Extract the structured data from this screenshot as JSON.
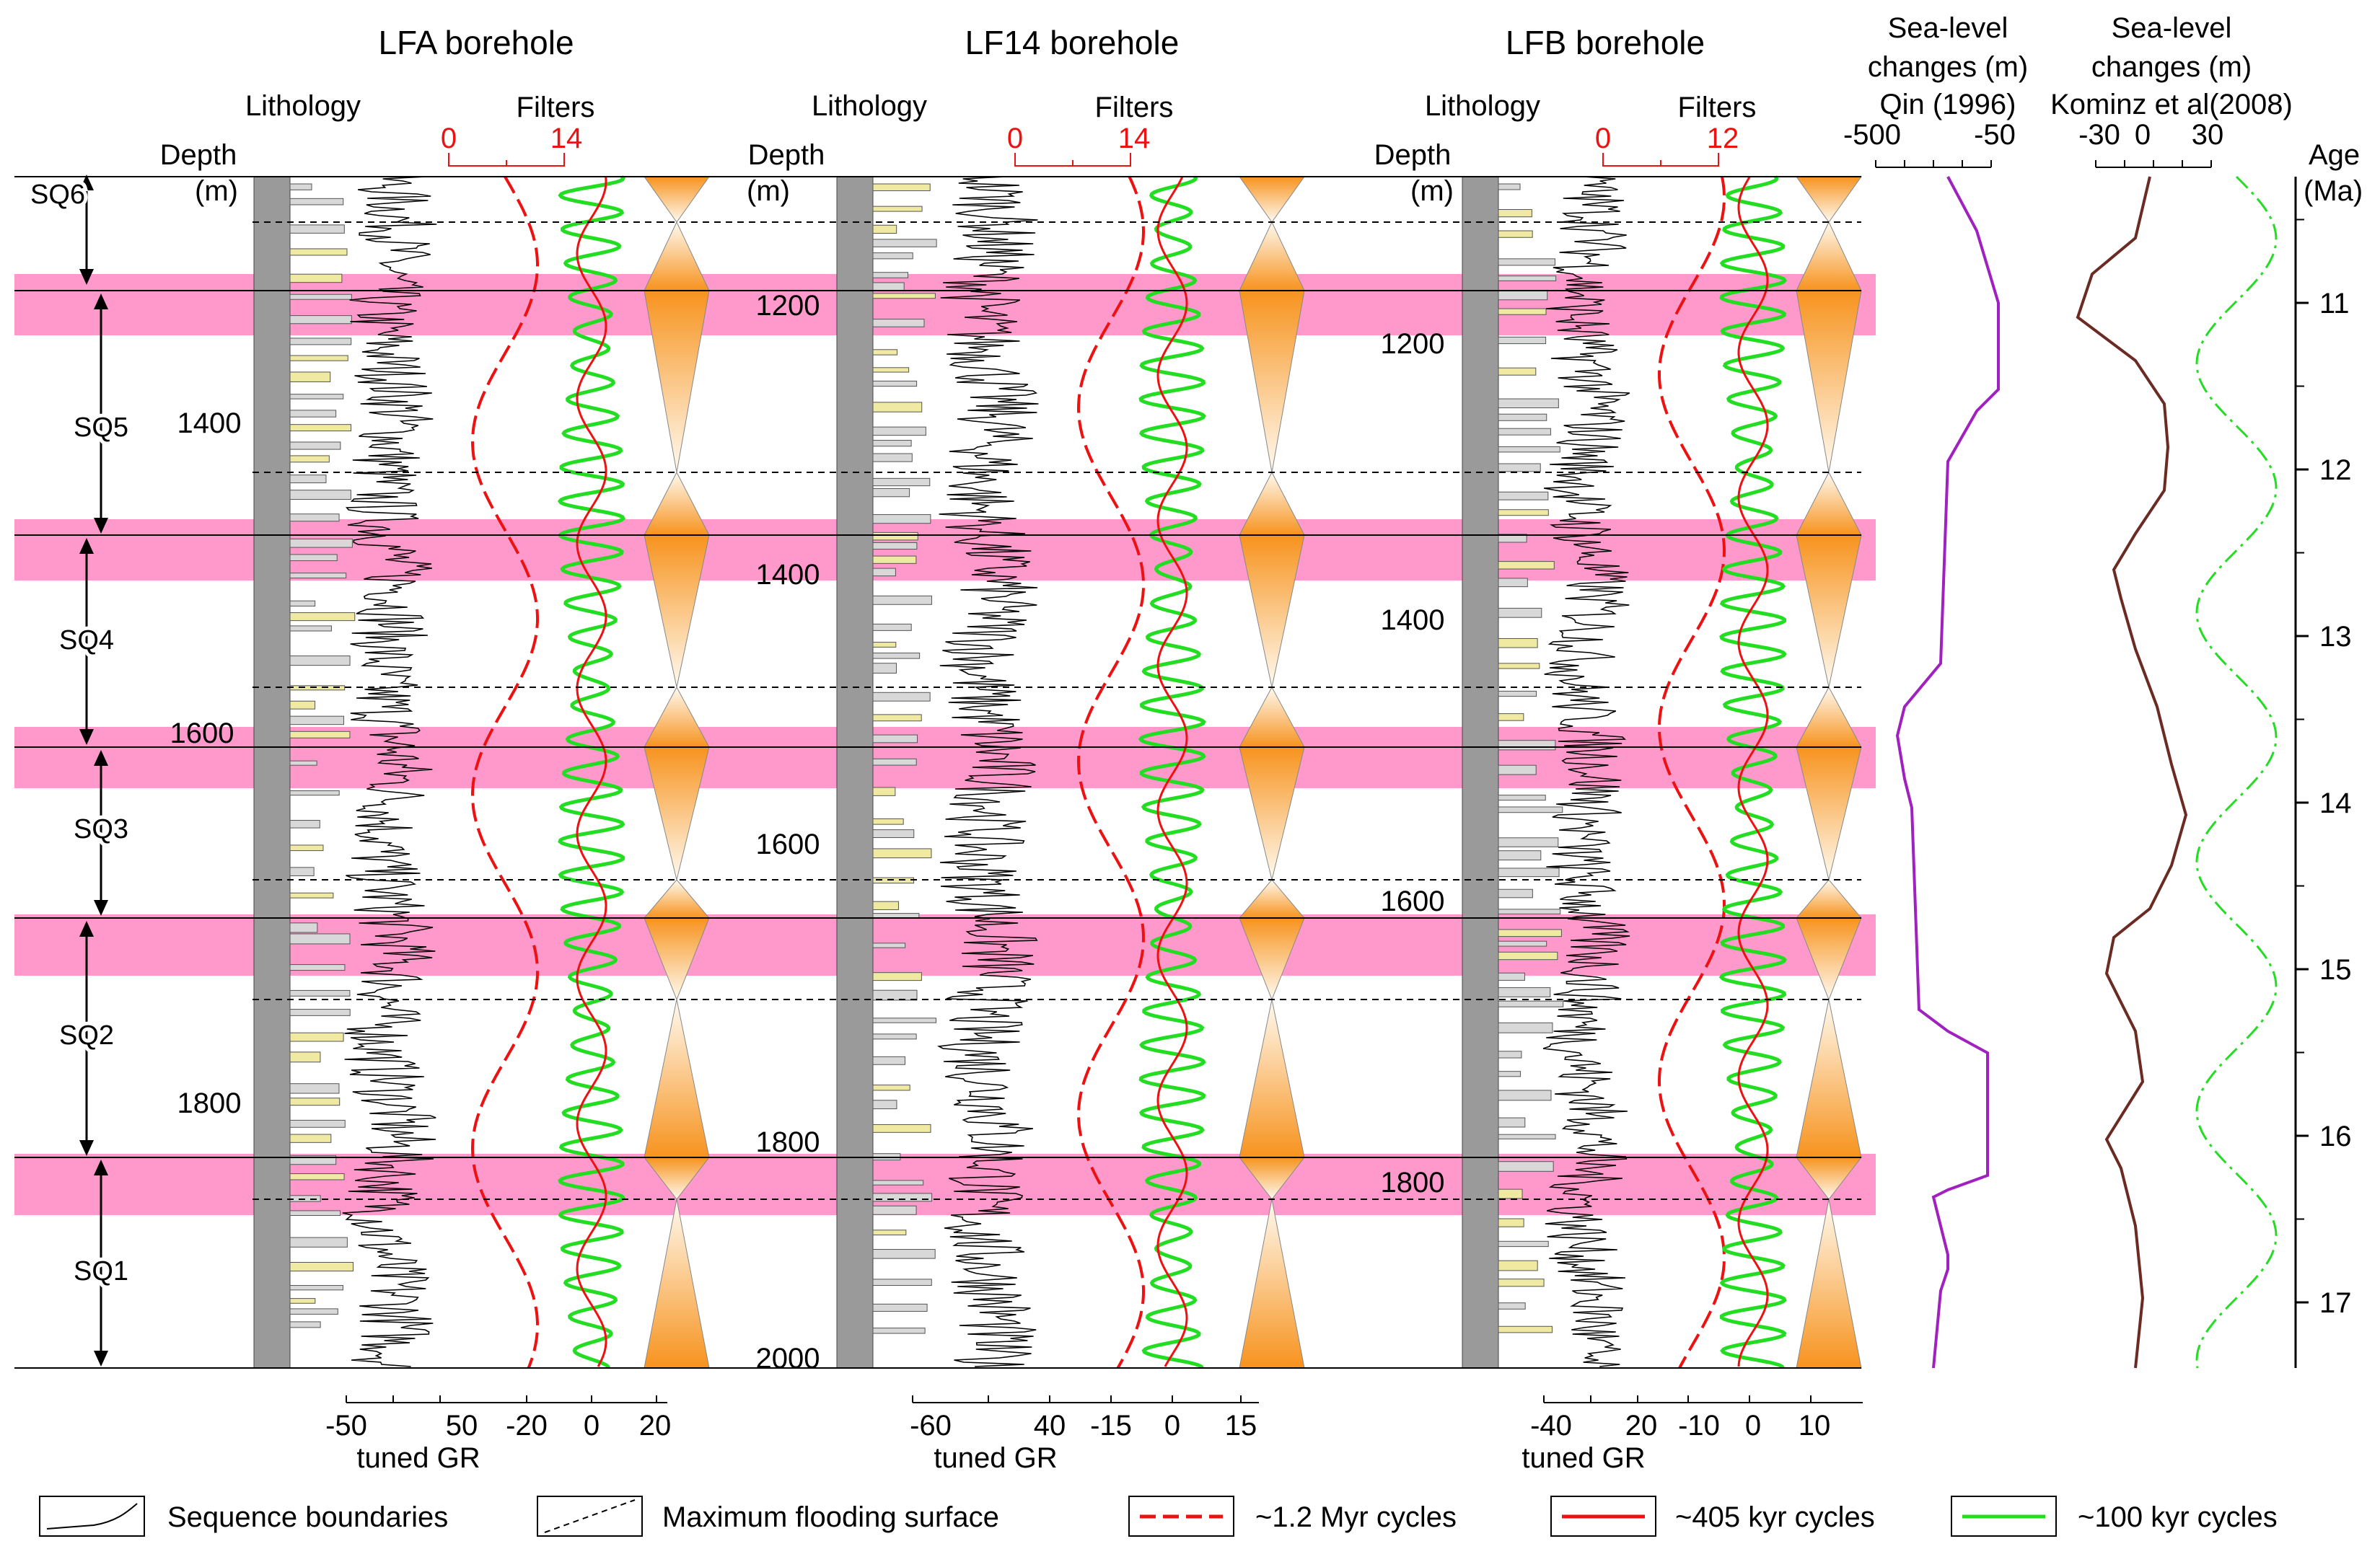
{
  "boreholes": [
    {
      "title": "LFA borehole",
      "lithology_label": "Lithology",
      "depth_label": "Depth",
      "depth_unit": "(m)",
      "filters_label": "Filters",
      "filter_scale_min": "0",
      "filter_scale_max": "14",
      "depth_ticks": [
        "1400",
        "1600",
        "1800"
      ],
      "gr_ticks": [
        "-50",
        "50"
      ],
      "gr_label": "tuned GR",
      "filter_ticks": [
        "-20",
        "0",
        "20"
      ]
    },
    {
      "title": "LF14 borehole",
      "lithology_label": "Lithology",
      "depth_label": "Depth",
      "depth_unit": "(m)",
      "filters_label": "Filters",
      "filter_scale_min": "0",
      "filter_scale_max": "14",
      "depth_ticks": [
        "1200",
        "1400",
        "1600",
        "1800",
        "2000"
      ],
      "gr_ticks": [
        "-60",
        "40"
      ],
      "gr_label": "tuned GR",
      "filter_ticks": [
        "-15",
        "0",
        "15"
      ]
    },
    {
      "title": "LFB borehole",
      "lithology_label": "Lithology",
      "depth_label": "Depth",
      "depth_unit": "(m)",
      "filters_label": "Filters",
      "filter_scale_min": "0",
      "filter_scale_max": "12",
      "depth_ticks": [
        "1200",
        "1400",
        "1600",
        "1800"
      ],
      "gr_ticks": [
        "-40",
        "20"
      ],
      "gr_label": "tuned GR",
      "filter_ticks": [
        "-10",
        "0",
        "10"
      ]
    }
  ],
  "sequences": [
    "SQ6",
    "SQ5",
    "SQ4",
    "SQ3",
    "SQ2",
    "SQ1"
  ],
  "sea_level": [
    {
      "title_line1": "Sea-level",
      "title_line2": "changes (m)",
      "title_line3": "Qin (1996)",
      "ticks": [
        "-500",
        "-50"
      ],
      "line_color": "#a020c0"
    },
    {
      "title_line1": "Sea-level",
      "title_line2": "changes (m)",
      "title_line3": "Kominz et al(2008)",
      "ticks": [
        "-30",
        "0",
        "30"
      ],
      "line_color": "#6b2a22"
    }
  ],
  "age_axis": {
    "label_line1": "Age",
    "label_line2": "(Ma)",
    "ticks": [
      "11",
      "12",
      "13",
      "14",
      "15",
      "16",
      "17"
    ]
  },
  "legend": [
    {
      "label": "Sequence boundaries",
      "kind": "boundary"
    },
    {
      "label": "Maximum flooding surface",
      "kind": "mfs"
    },
    {
      "label": "~1.2 Myr cycles",
      "kind": "cycle-1.2",
      "color": "#ee1111"
    },
    {
      "label": "~405 kyr cycles",
      "kind": "cycle-405",
      "color": "#ee1111"
    },
    {
      "label": "~100 kyr cycles",
      "kind": "cycle-100",
      "color": "#22dd22"
    }
  ],
  "colors": {
    "highstand_band": "#ff99cc",
    "trend_orange": "#f7931e",
    "cycle_1p2": "#ee1111",
    "cycle_405": "#ee1111",
    "cycle_100": "#22dd22",
    "lithology_column": "#9a9a9a",
    "sand_beds": "#efe9a2"
  }
}
